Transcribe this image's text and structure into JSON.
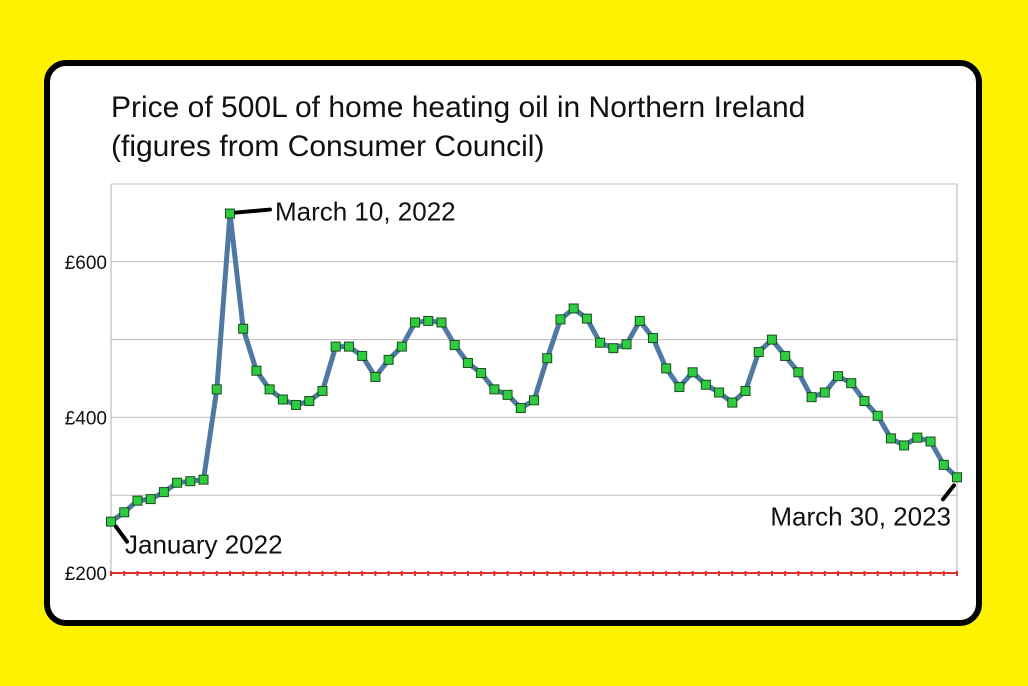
{
  "chart_data": {
    "type": "line",
    "title_lines": [
      "Price of 500L of home heating oil in Northern Ireland",
      "(figures from Consumer Council)"
    ],
    "xlabel": "",
    "ylabel": "",
    "y_ticks": [
      {
        "value": 200,
        "label": "£200"
      },
      {
        "value": 400,
        "label": "£400"
      },
      {
        "value": 600,
        "label": "£600"
      }
    ],
    "ylim": [
      200,
      700
    ],
    "grid": true,
    "line_color": "#4f79a3",
    "marker_color": "#2ecc40",
    "baseline_color": "#e03030",
    "series": [
      {
        "values": [
          266,
          278,
          293,
          295,
          304,
          316,
          318,
          320,
          436,
          662,
          514,
          460,
          436,
          423,
          416,
          421,
          434,
          491,
          491,
          479,
          452,
          474,
          491,
          522,
          524,
          522,
          493,
          470,
          457,
          436,
          429,
          412,
          422,
          476,
          526,
          540,
          527,
          496,
          489,
          494,
          524,
          502,
          463,
          439,
          458,
          442,
          432,
          419,
          434,
          484,
          500,
          479,
          458,
          426,
          432,
          453,
          444,
          421,
          402,
          373,
          364,
          374,
          369,
          339,
          323
        ]
      }
    ],
    "annotations": [
      {
        "label": "January 2022",
        "point_index": 0
      },
      {
        "label": "March 10, 2022",
        "point_index": 9
      },
      {
        "label": "March 30, 2023",
        "point_index": 64
      }
    ]
  }
}
